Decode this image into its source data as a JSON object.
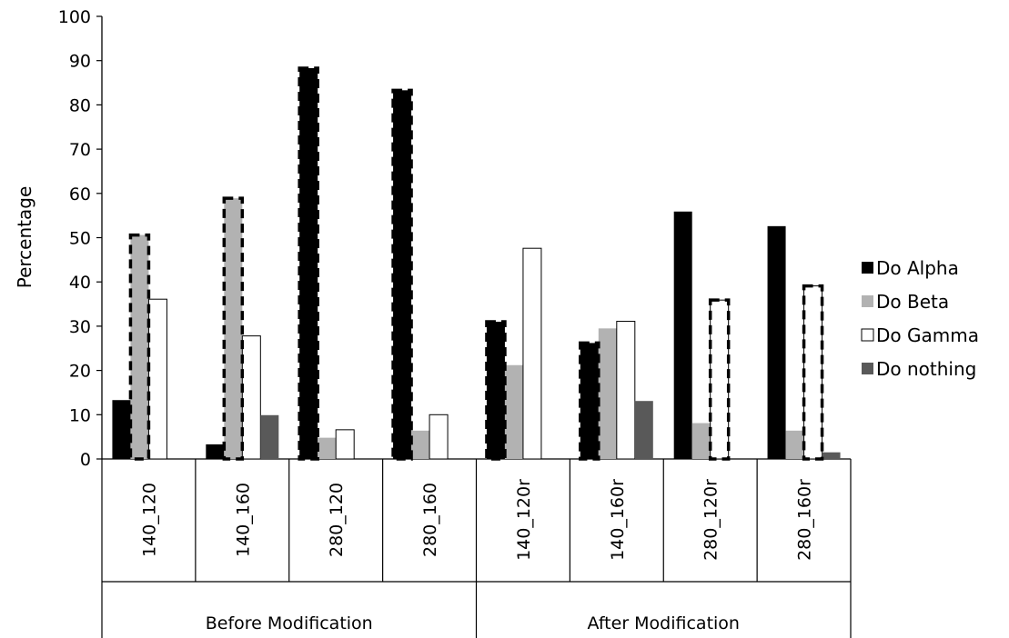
{
  "chart_data": {
    "type": "bar",
    "ylabel": "Percentage",
    "ylim": [
      0,
      100
    ],
    "yticks": [
      0,
      10,
      20,
      30,
      40,
      50,
      60,
      70,
      80,
      90,
      100
    ],
    "grid": false,
    "legend_position": "right",
    "categories": [
      "140_120",
      "140_160",
      "280_120",
      "280_160",
      "140_120r",
      "140_160r",
      "280_120r",
      "280_160r"
    ],
    "groups": [
      {
        "label": "Before Modification",
        "categories": [
          "140_120",
          "140_160",
          "280_120",
          "280_160"
        ]
      },
      {
        "label": "After Modification",
        "categories": [
          "140_120r",
          "140_160r",
          "280_120r",
          "280_160r"
        ]
      }
    ],
    "series": [
      {
        "name": "Do Alpha",
        "color": "#000000",
        "values": [
          13.3,
          3.3,
          88.3,
          83.3,
          31,
          26.2,
          55.9,
          52.6
        ]
      },
      {
        "name": "Do Beta",
        "color": "#b2b2b2",
        "values": [
          50.6,
          58.9,
          4.8,
          6.4,
          21.2,
          29.5,
          8.1,
          6.4
        ]
      },
      {
        "name": "Do Gamma",
        "color": "#ffffff",
        "values": [
          36.1,
          27.8,
          6.6,
          10,
          47.6,
          31.1,
          35.9,
          39.1
        ]
      },
      {
        "name": "Do nothing",
        "color": "#595959",
        "values": [
          0,
          9.9,
          0,
          0,
          0,
          13.1,
          0,
          1.5
        ]
      }
    ],
    "highlighted": [
      {
        "series": "Do Beta",
        "category": "140_120"
      },
      {
        "series": "Do Beta",
        "category": "140_160"
      },
      {
        "series": "Do Alpha",
        "category": "280_120"
      },
      {
        "series": "Do Alpha",
        "category": "280_160"
      },
      {
        "series": "Do Alpha",
        "category": "140_120r"
      },
      {
        "series": "Do Alpha",
        "category": "140_160r"
      },
      {
        "series": "Do Gamma",
        "category": "280_120r"
      },
      {
        "series": "Do Gamma",
        "category": "280_160r"
      }
    ]
  }
}
